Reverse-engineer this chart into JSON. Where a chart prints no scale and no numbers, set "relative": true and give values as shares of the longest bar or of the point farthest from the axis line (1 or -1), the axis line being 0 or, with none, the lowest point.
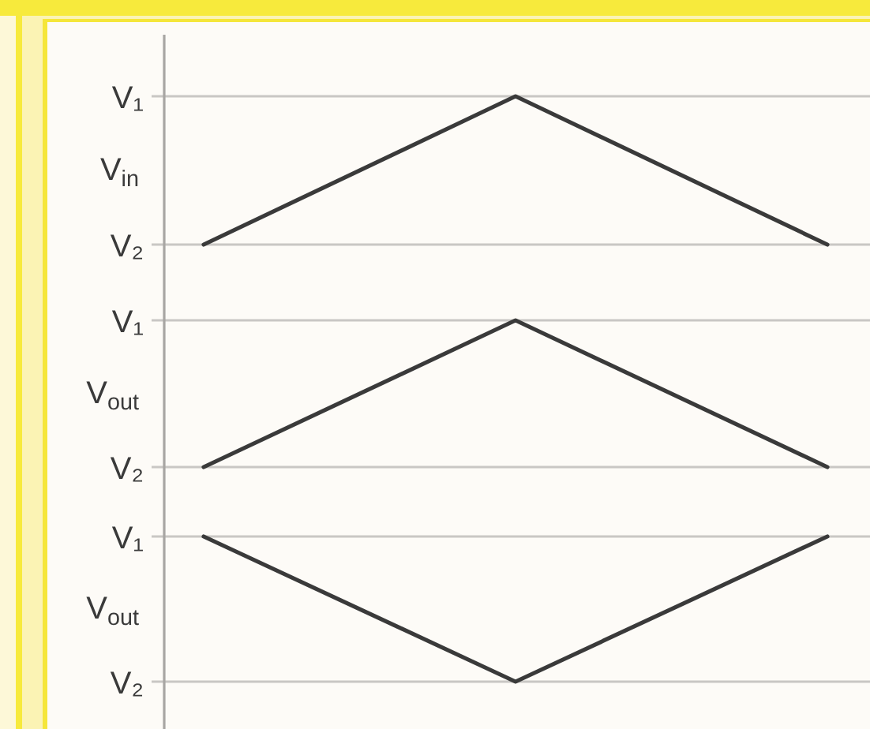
{
  "chart_data": [
    {
      "type": "line",
      "relative": true,
      "ylabel": "V$_{in}$",
      "categories": [
        null,
        null,
        null
      ],
      "values": [
        0,
        1,
        0
      ],
      "color": "#3a3a3a",
      "ref_lines": [
        {
          "axis": "y",
          "value": 1,
          "label": "V₁",
          "color": "#c9c7c4"
        },
        {
          "axis": "y",
          "value": 0,
          "label": "V₂",
          "color": "#c9c7c4"
        }
      ]
    },
    {
      "type": "line",
      "relative": true,
      "ylabel": "V$_{out}$",
      "categories": [
        null,
        null,
        null
      ],
      "values": [
        0,
        1,
        0
      ],
      "color": "#3a3a3a",
      "ref_lines": [
        {
          "axis": "y",
          "value": 1,
          "label": "V₁",
          "color": "#c9c7c4"
        },
        {
          "axis": "y",
          "value": 0,
          "label": "V₂",
          "color": "#c9c7c4"
        }
      ]
    },
    {
      "type": "line",
      "relative": true,
      "ylabel": "V$_{out}$",
      "categories": [
        null,
        null,
        null
      ],
      "values": [
        1,
        0,
        1
      ],
      "color": "#3a3a3a",
      "ref_lines": [
        {
          "axis": "y",
          "value": 1,
          "label": "V₁",
          "color": "#c9c7c4"
        },
        {
          "axis": "y",
          "value": 0,
          "label": "V₂",
          "color": "#c9c7c4"
        }
      ]
    }
  ]
}
